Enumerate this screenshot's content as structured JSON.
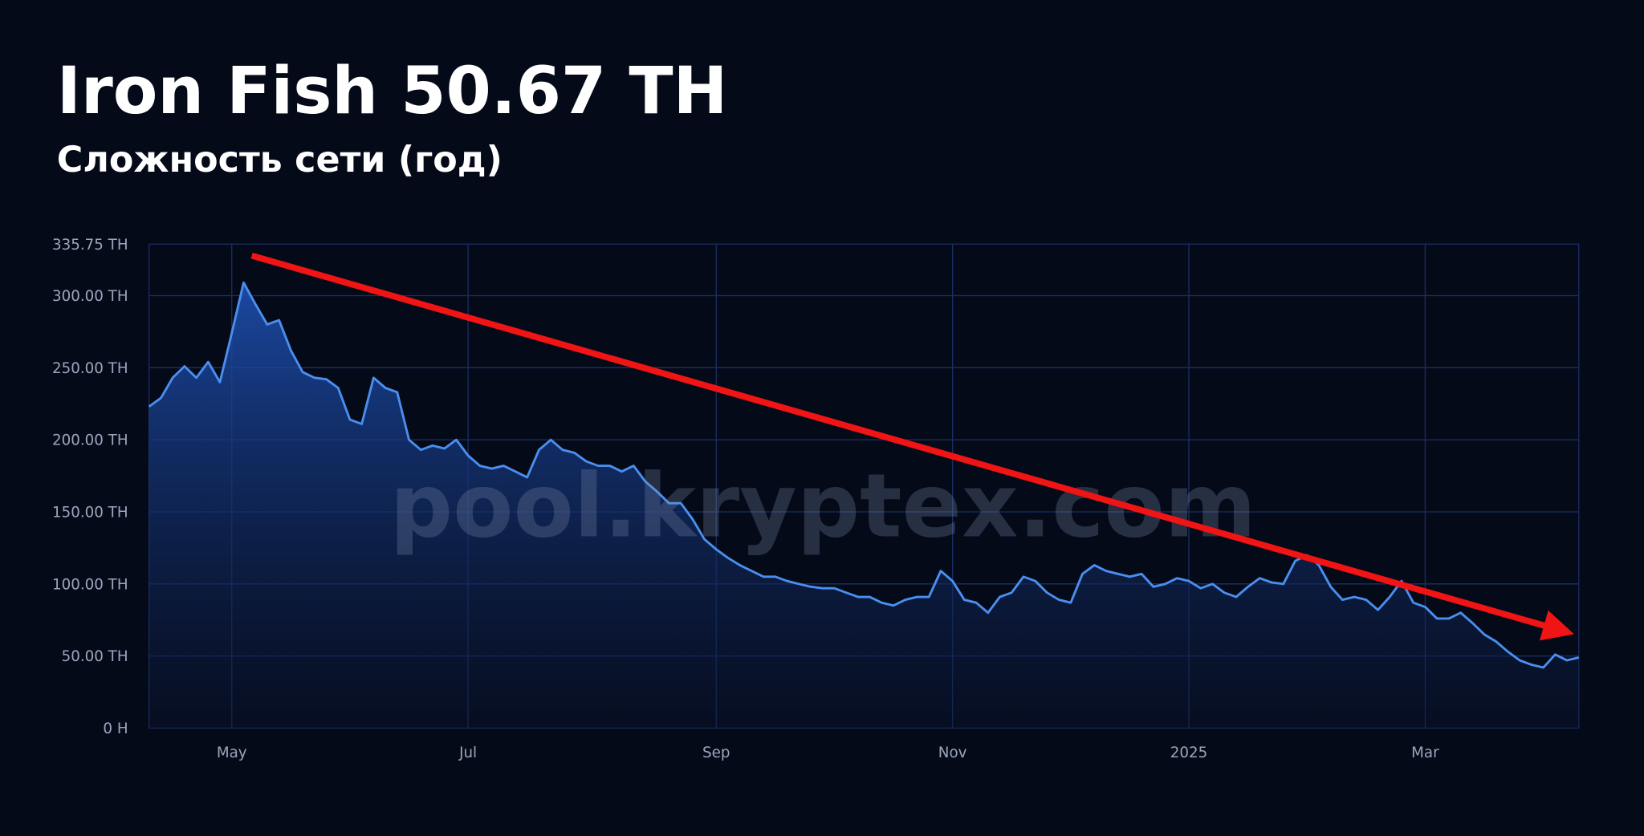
{
  "chart_data": {
    "type": "line",
    "title": "Iron Fish 50.67 TH",
    "subtitle": "Сложность сети (год)",
    "watermark": "pool.kryptex.com",
    "color": "#4a8ff0",
    "grid": true,
    "categories": [
      null,
      null,
      null,
      null,
      null,
      null,
      null,
      "May",
      null,
      null,
      null,
      null,
      null,
      null,
      null,
      null,
      null,
      null,
      null,
      null,
      null,
      null,
      null,
      null,
      null,
      null,
      null,
      "Jul",
      null,
      null,
      null,
      null,
      null,
      null,
      null,
      null,
      null,
      null,
      null,
      null,
      null,
      null,
      null,
      null,
      null,
      null,
      null,
      null,
      "Sep",
      null,
      null,
      null,
      null,
      null,
      null,
      null,
      null,
      null,
      null,
      null,
      null,
      null,
      null,
      null,
      null,
      null,
      null,
      null,
      "Nov",
      null,
      null,
      null,
      null,
      null,
      null,
      null,
      null,
      null,
      null,
      null,
      null,
      null,
      null,
      null,
      null,
      null,
      null,
      null,
      "2025",
      null,
      null,
      null,
      null,
      null,
      null,
      null,
      null,
      null,
      null,
      null,
      null,
      null,
      null,
      null,
      null,
      null,
      null,
      null,
      "Mar",
      null,
      null,
      null,
      null,
      null,
      null,
      null,
      null,
      null,
      null,
      null,
      null,
      null
    ],
    "values": [
      223,
      229,
      243,
      251,
      243,
      254,
      240,
      274,
      309,
      294,
      280,
      283,
      262,
      247,
      243,
      242,
      236,
      214,
      211,
      243,
      236,
      233,
      200,
      193,
      196,
      194,
      200,
      189,
      182,
      180,
      182,
      178,
      174,
      193,
      200,
      193,
      191,
      185,
      182,
      182,
      178,
      182,
      171,
      164,
      156,
      156,
      145,
      131,
      124,
      118,
      113,
      109,
      105,
      105,
      102,
      100,
      98,
      97,
      97,
      94,
      91,
      91,
      87,
      85,
      89,
      91,
      91,
      109,
      102,
      89,
      87,
      80,
      91,
      94,
      105,
      102,
      94,
      89,
      87,
      107,
      113,
      109,
      107,
      105,
      107,
      98,
      100,
      104,
      102,
      97,
      100,
      94,
      91,
      98,
      104,
      101,
      100,
      116,
      120,
      113,
      98,
      89,
      91,
      89,
      82,
      91,
      102,
      87,
      84,
      76,
      76,
      80,
      73,
      65,
      60,
      53,
      47,
      44,
      42,
      51,
      47,
      49
    ],
    "ylim": [
      0,
      335.75
    ],
    "yticks": [
      {
        "value": 335.75,
        "label": "335.75 TH"
      },
      {
        "value": 300,
        "label": "300.00 TH"
      },
      {
        "value": 250,
        "label": "250.00 TH"
      },
      {
        "value": 200,
        "label": "200.00 TH"
      },
      {
        "value": 150,
        "label": "150.00 TH"
      },
      {
        "value": 100,
        "label": "100.00 TH"
      },
      {
        "value": 50,
        "label": "50.00 TH"
      },
      {
        "value": 0,
        "label": "0 H"
      }
    ]
  }
}
